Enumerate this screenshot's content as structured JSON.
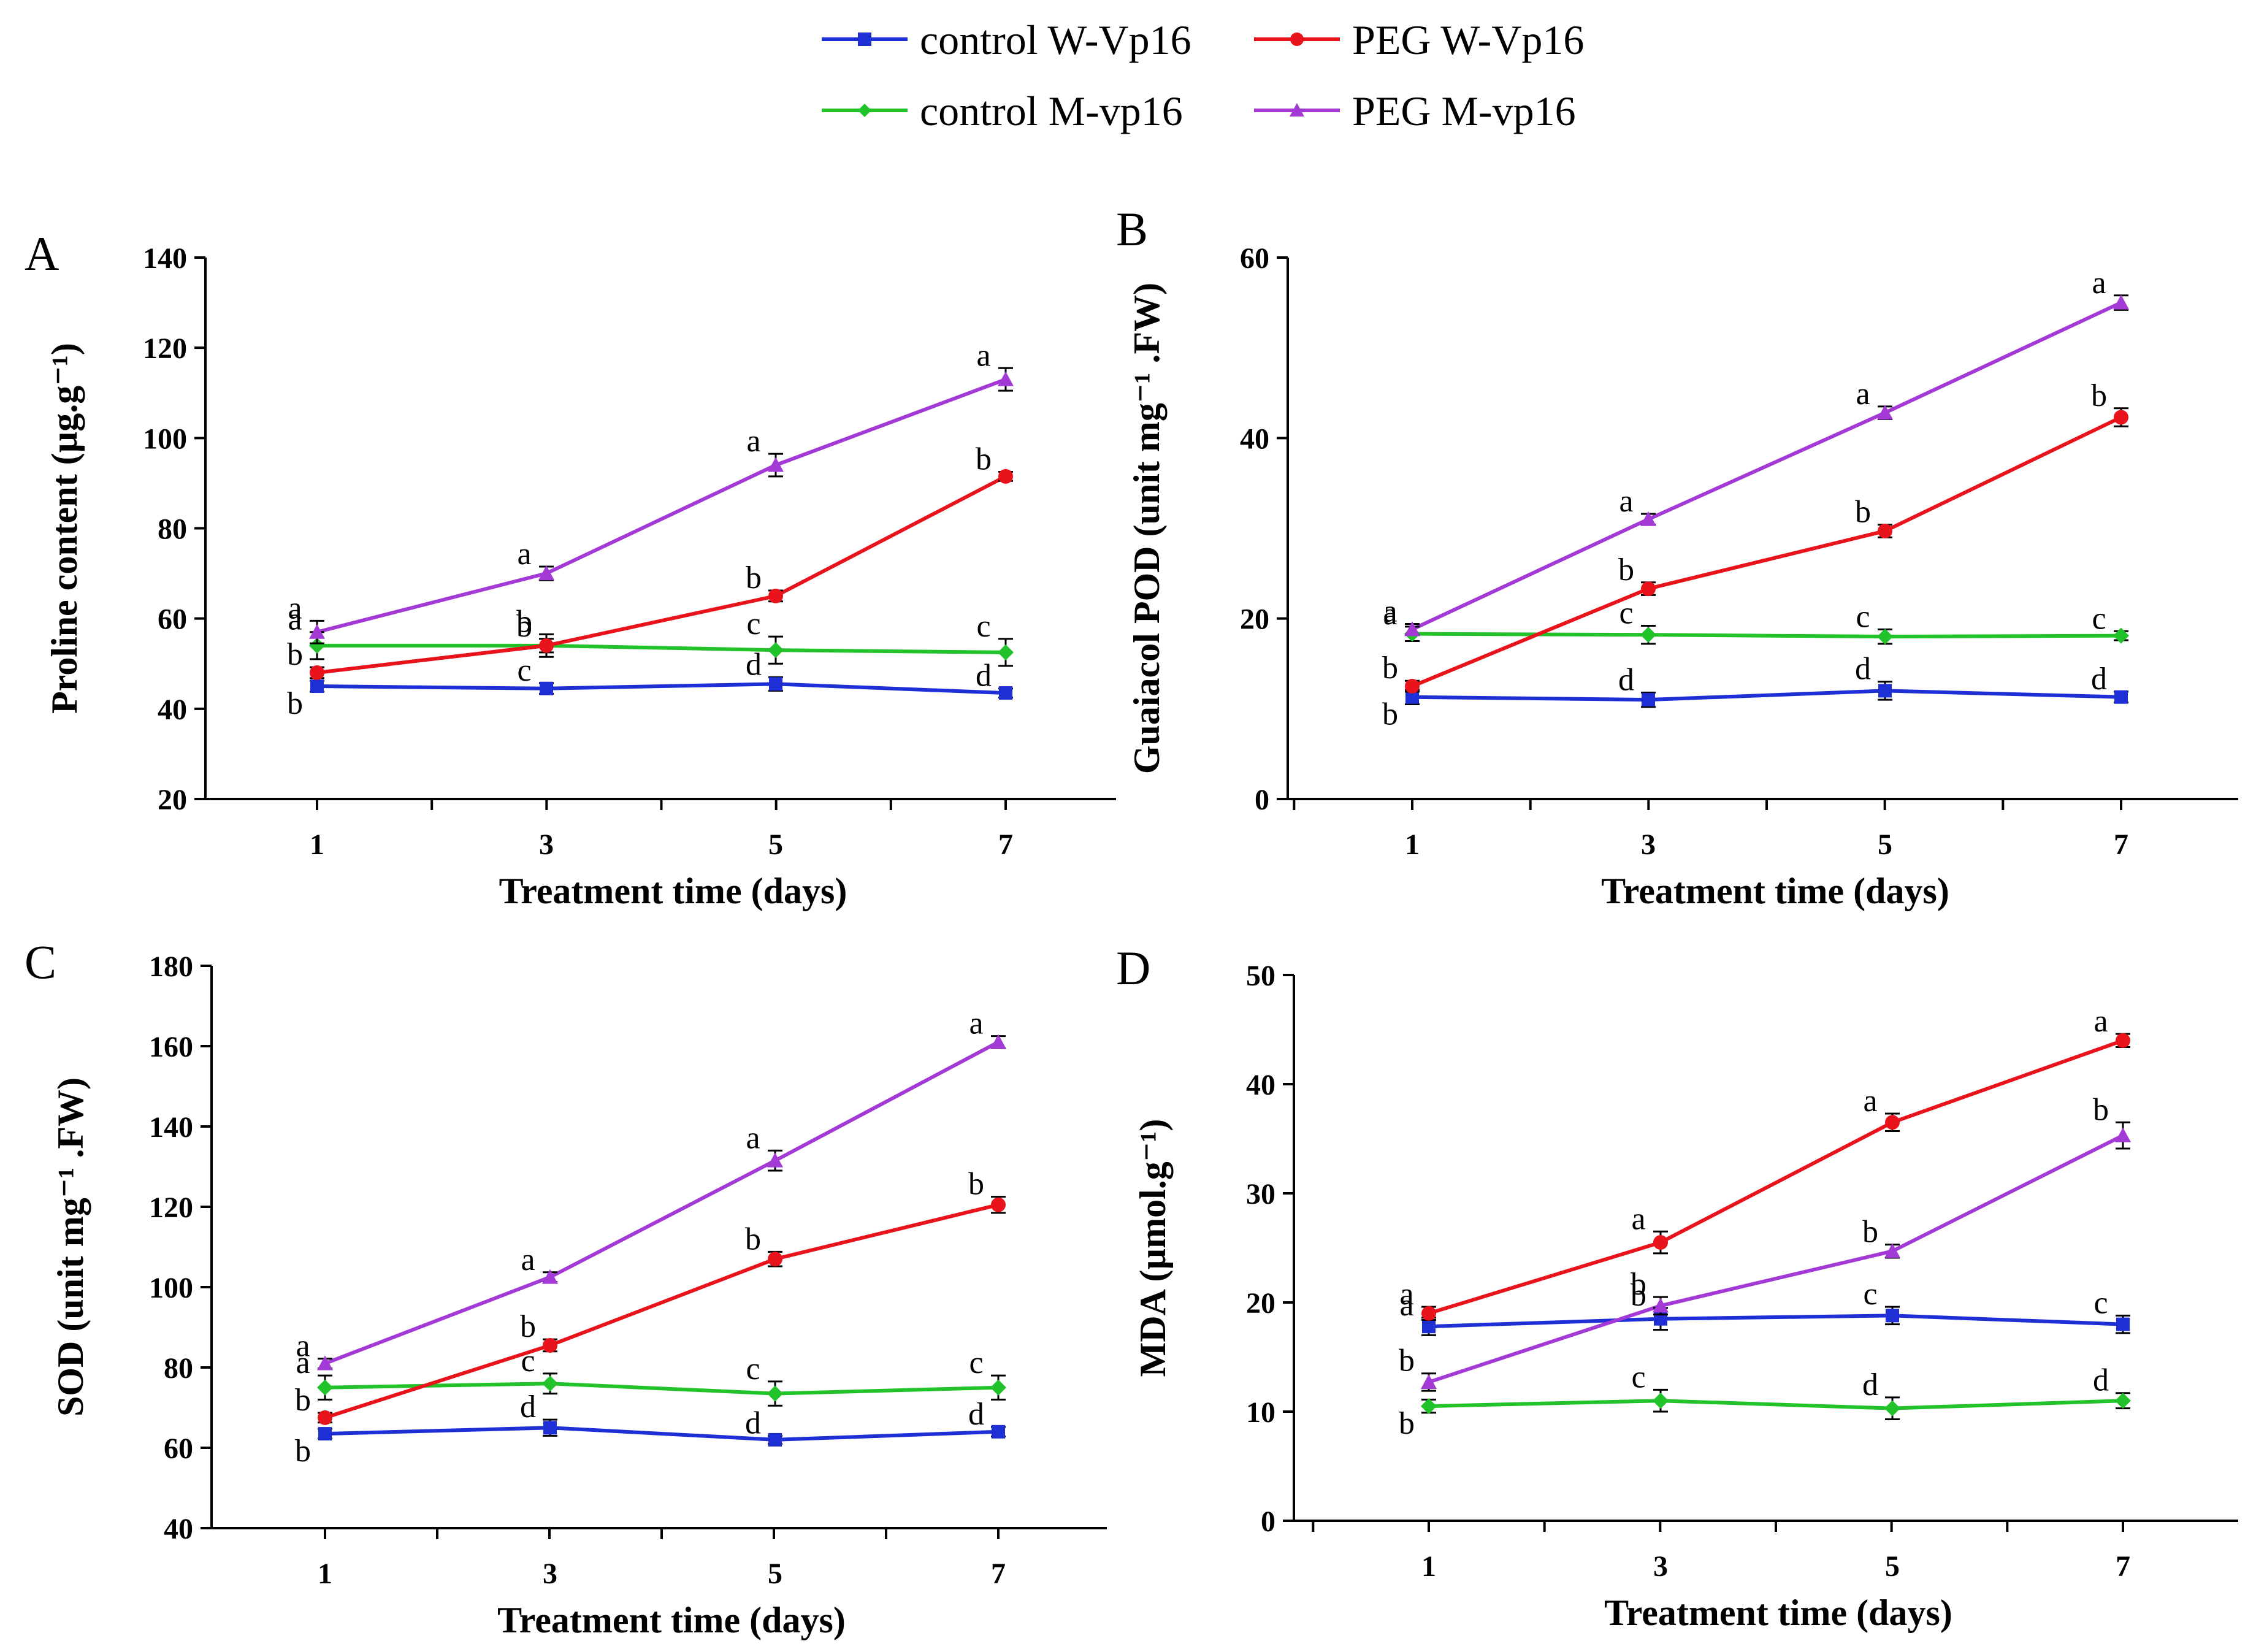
{
  "legend": [
    {
      "key": "control_w",
      "label": "control W-Vp16",
      "color": "#1f2fd6"
    },
    {
      "key": "peg_w",
      "label": "PEG W-Vp16",
      "color": "#e8131b"
    },
    {
      "key": "control_m",
      "label": "control M-vp16",
      "color": "#22c32a"
    },
    {
      "key": "peg_m",
      "label": "PEG M-vp16",
      "color": "#a33ad6"
    }
  ],
  "chart_data": [
    {
      "panel": "A",
      "type": "line",
      "xlabel": "Treatment time (days)",
      "ylabel": "Proline content (µg.g⁻¹)",
      "x": [
        1,
        3,
        5,
        7
      ],
      "xticks": [
        "1",
        "3",
        "5",
        "7"
      ],
      "ylim": [
        20,
        140
      ],
      "yticks": [
        20,
        40,
        60,
        80,
        100,
        120,
        140
      ],
      "series": [
        {
          "key": "control_w",
          "name": "control W-Vp16",
          "values": [
            45,
            44.5,
            45.5,
            43.5
          ],
          "errors": [
            1.2,
            1.2,
            1.5,
            1.0
          ],
          "letters": [
            "b",
            "c",
            "d",
            "d"
          ]
        },
        {
          "key": "peg_w",
          "name": "PEG W-Vp16",
          "values": [
            48,
            54,
            65,
            91.5
          ],
          "errors": [
            1.2,
            1.5,
            1.2,
            1.0
          ],
          "letters": [
            "b",
            "b",
            "b",
            "b"
          ]
        },
        {
          "key": "control_m",
          "name": "control M-vp16",
          "values": [
            54,
            54,
            53,
            52.5
          ],
          "errors": [
            3,
            2.5,
            3,
            3
          ],
          "letters": [
            "a",
            "b",
            "c",
            "c"
          ]
        },
        {
          "key": "peg_m",
          "name": "PEG M-vp16",
          "values": [
            57,
            70,
            94,
            113
          ],
          "errors": [
            2.5,
            1.5,
            2.5,
            2.5
          ],
          "letters": [
            "a",
            "a",
            "a",
            "a"
          ]
        }
      ]
    },
    {
      "panel": "B",
      "type": "line",
      "xlabel": "Treatment time (days)",
      "ylabel": "Guaiacol POD (unit mg⁻¹ .FW)",
      "x": [
        1,
        3,
        5,
        7
      ],
      "xticks": [
        "1",
        "3",
        "5",
        "7"
      ],
      "ylim": [
        0,
        60
      ],
      "yticks": [
        0,
        20,
        40,
        60
      ],
      "series": [
        {
          "key": "control_w",
          "name": "control W-Vp16",
          "values": [
            11.3,
            11,
            12,
            11.3
          ],
          "errors": [
            0.8,
            0.8,
            1.0,
            0.6
          ],
          "letters": [
            "b",
            "d",
            "d",
            "d"
          ]
        },
        {
          "key": "peg_w",
          "name": "PEG W-Vp16",
          "values": [
            12.5,
            23.3,
            29.7,
            42.3
          ],
          "errors": [
            0.6,
            0.7,
            0.7,
            1.0
          ],
          "letters": [
            "b",
            "b",
            "b",
            "b"
          ]
        },
        {
          "key": "control_m",
          "name": "control M-vp16",
          "values": [
            18.3,
            18.2,
            18,
            18.1
          ],
          "errors": [
            0.8,
            1.0,
            0.8,
            0.5
          ],
          "letters": [
            "a",
            "c",
            "c",
            "c"
          ]
        },
        {
          "key": "peg_m",
          "name": "PEG M-vp16",
          "values": [
            18.8,
            31,
            42.8,
            55
          ],
          "errors": [
            0.6,
            0.6,
            0.7,
            0.8
          ],
          "letters": [
            "a",
            "a",
            "a",
            "a"
          ]
        }
      ]
    },
    {
      "panel": "C",
      "type": "line",
      "xlabel": "Treatment time (days)",
      "ylabel": "SOD (unit mg⁻¹ .FW)",
      "x": [
        1,
        3,
        5,
        7
      ],
      "xticks": [
        "1",
        "3",
        "5",
        "7"
      ],
      "ylim": [
        40,
        180
      ],
      "yticks": [
        40,
        60,
        80,
        100,
        120,
        140,
        160,
        180
      ],
      "series": [
        {
          "key": "control_w",
          "name": "control W-Vp16",
          "values": [
            63.5,
            65,
            62,
            64
          ],
          "errors": [
            1.2,
            2.0,
            1.0,
            1.2
          ],
          "letters": [
            "b",
            "d",
            "d",
            "d"
          ]
        },
        {
          "key": "peg_w",
          "name": "PEG W-Vp16",
          "values": [
            67.5,
            85.5,
            107,
            120.5
          ],
          "errors": [
            1.2,
            1.5,
            1.8,
            2.0
          ],
          "letters": [
            "b",
            "b",
            "b",
            "b"
          ]
        },
        {
          "key": "control_m",
          "name": "control M-vp16",
          "values": [
            75,
            76,
            73.5,
            75
          ],
          "errors": [
            3,
            2.5,
            3,
            3
          ],
          "letters": [
            "a",
            "c",
            "c",
            "c"
          ]
        },
        {
          "key": "peg_m",
          "name": "PEG M-vp16",
          "values": [
            81,
            102.5,
            131.5,
            161
          ],
          "errors": [
            1.2,
            1.2,
            2.5,
            1.5
          ],
          "letters": [
            "a",
            "a",
            "a",
            "a"
          ]
        }
      ]
    },
    {
      "panel": "D",
      "type": "line",
      "xlabel": "Treatment time (days)",
      "ylabel": "MDA (µmol.g⁻¹)",
      "x": [
        1,
        3,
        5,
        7
      ],
      "xticks": [
        "1",
        "3",
        "5",
        "7"
      ],
      "ylim": [
        0,
        50
      ],
      "yticks": [
        0,
        10,
        20,
        30,
        40,
        50
      ],
      "series": [
        {
          "key": "control_w",
          "name": "control W-Vp16",
          "values": [
            17.8,
            18.5,
            18.8,
            18
          ],
          "errors": [
            0.8,
            1.0,
            0.8,
            0.8
          ],
          "letters": [
            "a",
            "b",
            "c",
            "c"
          ]
        },
        {
          "key": "peg_w",
          "name": "PEG W-Vp16",
          "values": [
            19,
            25.5,
            36.5,
            44
          ],
          "errors": [
            0.6,
            1.0,
            0.8,
            0.6
          ],
          "letters": [
            "a",
            "a",
            "a",
            "a"
          ]
        },
        {
          "key": "control_m",
          "name": "control M-vp16",
          "values": [
            10.5,
            11,
            10.3,
            11
          ],
          "errors": [
            0.6,
            1.0,
            1.0,
            0.7
          ],
          "letters": [
            "b",
            "c",
            "d",
            "d"
          ]
        },
        {
          "key": "peg_m",
          "name": "PEG M-vp16",
          "values": [
            12.7,
            19.7,
            24.7,
            35.3
          ],
          "errors": [
            0.8,
            0.8,
            0.6,
            1.2
          ],
          "letters": [
            "b",
            "b",
            "b",
            "b"
          ]
        }
      ]
    }
  ]
}
